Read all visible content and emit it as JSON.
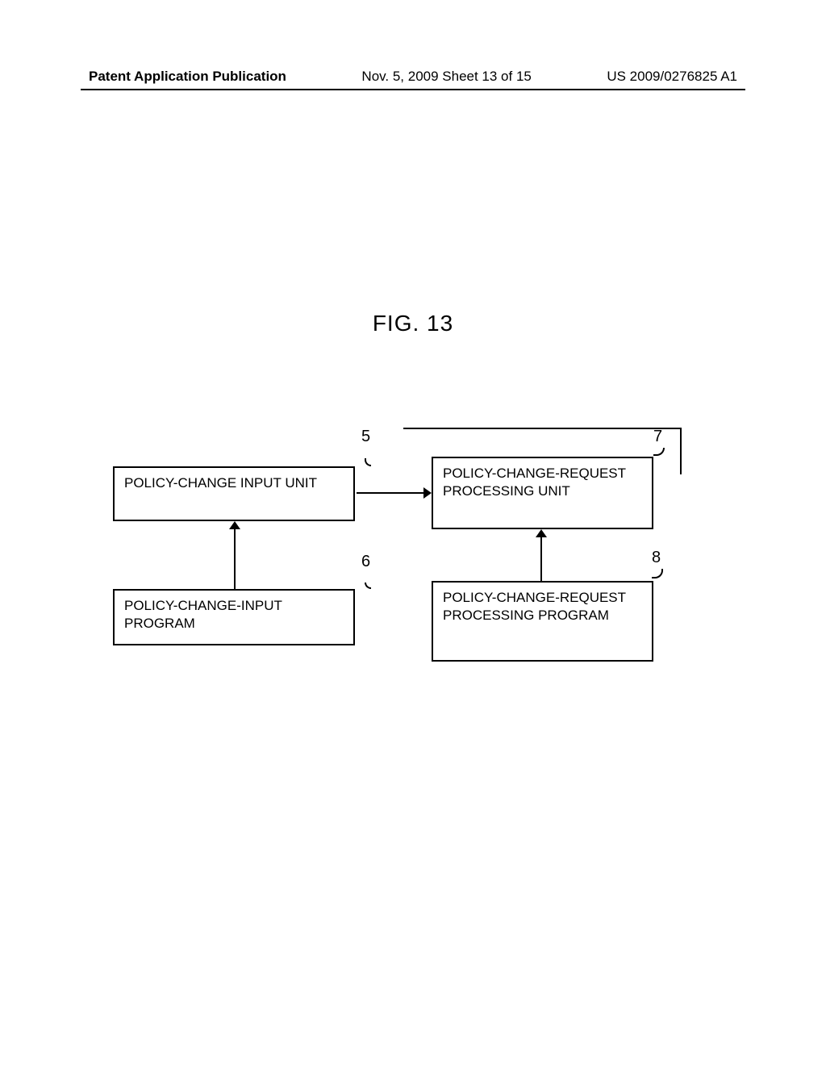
{
  "header": {
    "left": "Patent Application Publication",
    "center": "Nov. 5, 2009  Sheet 13 of 15",
    "right": "US 2009/0276825 A1"
  },
  "figure": {
    "title": "FIG. 13"
  },
  "diagram": {
    "boxes": {
      "b5": {
        "ref": "5",
        "text": "POLICY-CHANGE INPUT UNIT"
      },
      "b6": {
        "ref": "6",
        "text": "POLICY-CHANGE-INPUT PROGRAM"
      },
      "b7": {
        "ref": "7",
        "text": "POLICY-CHANGE-REQUEST PROCESSING UNIT"
      },
      "b8": {
        "ref": "8",
        "text": "POLICY-CHANGE-REQUEST PROCESSING PROGRAM"
      }
    }
  }
}
